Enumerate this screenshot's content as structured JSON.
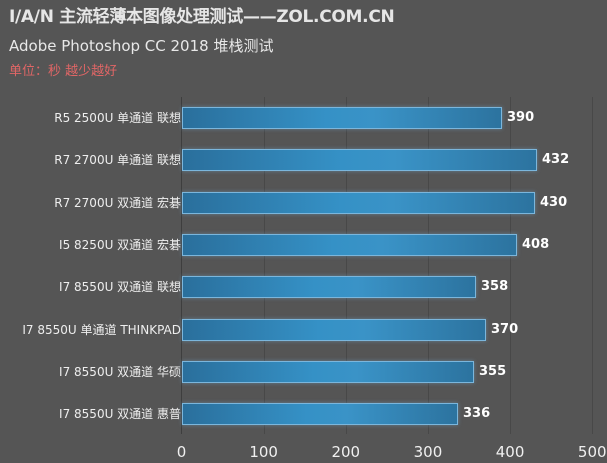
{
  "header": {
    "title": "I/A/N 主流轻薄本图像处理测试——ZOL.COM.CN",
    "subtitle": "Adobe Photoshop CC 2018 堆栈测试",
    "unit_note": "单位：秒 越少越好"
  },
  "colors": {
    "background": "#555555",
    "bar": "#3591c6",
    "bar_border": "#7bb6dc",
    "unit_note": "#e06666",
    "text": "#eeeeee"
  },
  "chart_data": {
    "type": "bar",
    "orientation": "horizontal",
    "title": "I/A/N 主流轻薄本图像处理测试——ZOL.COM.CN",
    "subtitle": "Adobe Photoshop CC 2018 堆栈测试",
    "annotation": "单位：秒 越少越好",
    "xlabel": "",
    "ylabel": "",
    "xlim": [
      0,
      500
    ],
    "x_ticks": [
      "0",
      "100",
      "200",
      "300",
      "400",
      "500"
    ],
    "grid": true,
    "legend": null,
    "categories": [
      "R5 2500U 单通道 联想",
      "R7 2700U 单通道 联想",
      "R7 2700U 双通道 宏碁",
      "I5 8250U 双通道 宏碁",
      "I7 8550U 双通道 联想",
      "I7 8550U 单通道 THINKPAD",
      "I7 8550U 双通道 华硕",
      "I7 8550U 双通道 惠普"
    ],
    "values": [
      390,
      432,
      430,
      408,
      358,
      370,
      355,
      336
    ],
    "value_labels": [
      "390",
      "432",
      "430",
      "408",
      "358",
      "370",
      "355",
      "336"
    ]
  }
}
